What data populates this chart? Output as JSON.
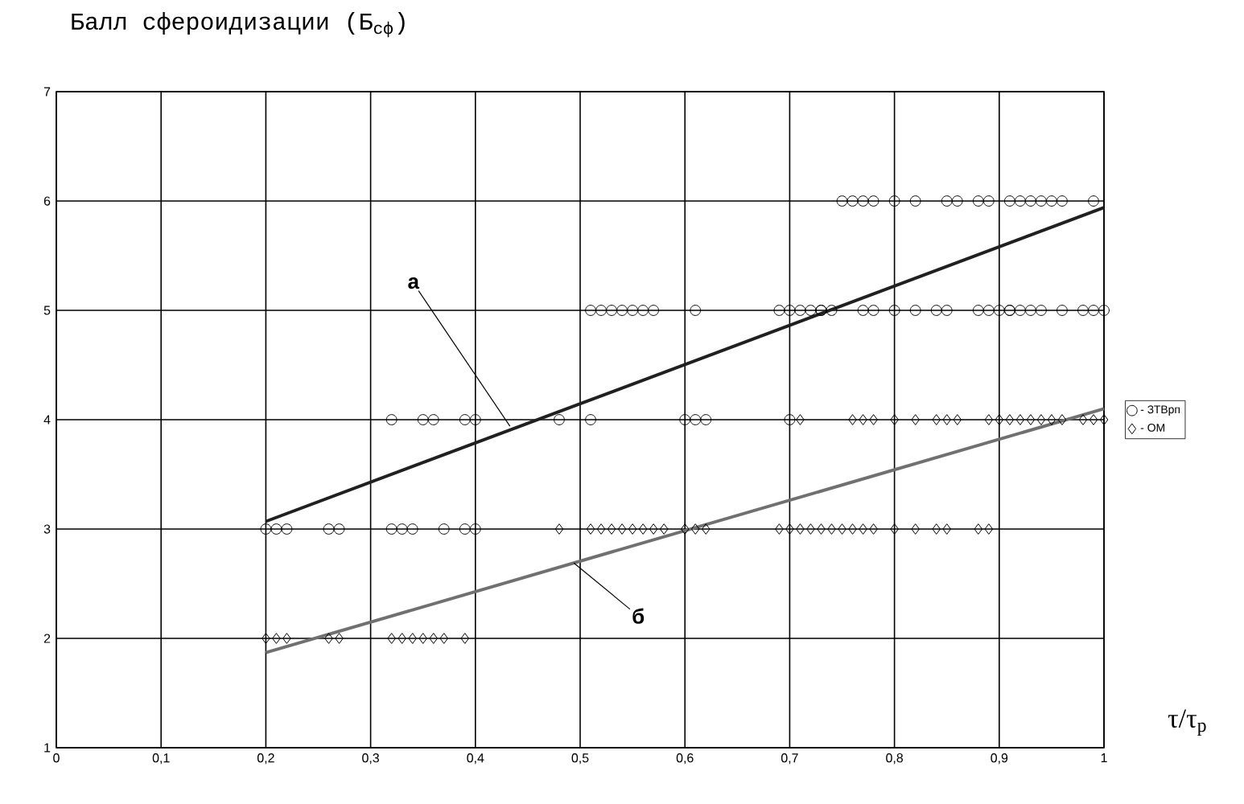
{
  "chart_data": {
    "type": "scatter",
    "title": "Балл сфероидизации (Б$_{сф}$)",
    "xlabel": "τ/τ$_{р}$",
    "xlim": [
      0,
      1
    ],
    "ylim": [
      1,
      7
    ],
    "xticks": [
      0,
      {
        "value": 0.1,
        "label": "0,1"
      },
      {
        "value": 0.2,
        "label": "0,2"
      },
      {
        "value": 0.3,
        "label": "0,3"
      },
      {
        "value": 0.4,
        "label": "0,4"
      },
      {
        "value": 0.5,
        "label": "0,5"
      },
      {
        "value": 0.6,
        "label": "0,6"
      },
      {
        "value": 0.7,
        "label": "0,7"
      },
      {
        "value": 0.8,
        "label": "0,8"
      },
      {
        "value": 0.9,
        "label": "0,9"
      },
      1
    ],
    "yticks": [
      1,
      2,
      3,
      4,
      5,
      6,
      7
    ],
    "grid": true,
    "legend": "right",
    "series": [
      {
        "name": "- ЗТВрп",
        "marker": "circle",
        "color": "#000000",
        "x": [
          0.75,
          0.76,
          0.77,
          0.78,
          0.8,
          0.82,
          0.85,
          0.86,
          0.88,
          0.89,
          0.91,
          0.92,
          0.93,
          0.94,
          0.95,
          0.96,
          0.99,
          0.51,
          0.52,
          0.53,
          0.54,
          0.55,
          0.56,
          0.57,
          0.61,
          0.69,
          0.7,
          0.71,
          0.72,
          0.73,
          0.73,
          0.74,
          0.77,
          0.78,
          0.8,
          0.82,
          0.84,
          0.85,
          0.88,
          0.89,
          0.9,
          0.91,
          0.91,
          0.92,
          0.93,
          0.94,
          0.96,
          0.98,
          0.99,
          1.0,
          0.32,
          0.35,
          0.36,
          0.39,
          0.4,
          0.48,
          0.51,
          0.6,
          0.61,
          0.62,
          0.7,
          0.2,
          0.21,
          0.22,
          0.26,
          0.27,
          0.32,
          0.33,
          0.34,
          0.37,
          0.39,
          0.4
        ],
        "values": [
          6,
          6,
          6,
          6,
          6,
          6,
          6,
          6,
          6,
          6,
          6,
          6,
          6,
          6,
          6,
          6,
          6,
          5,
          5,
          5,
          5,
          5,
          5,
          5,
          5,
          5,
          5,
          5,
          5,
          5,
          5,
          5,
          5,
          5,
          5,
          5,
          5,
          5,
          5,
          5,
          5,
          5,
          5,
          5,
          5,
          5,
          5,
          5,
          5,
          5,
          4,
          4,
          4,
          4,
          4,
          4,
          4,
          4,
          4,
          4,
          4,
          3,
          3,
          3,
          3,
          3,
          3,
          3,
          3,
          3,
          3,
          3
        ]
      },
      {
        "name": "- ОМ",
        "marker": "diamond",
        "color": "#000000",
        "x": [
          0.71,
          0.76,
          0.77,
          0.78,
          0.8,
          0.82,
          0.84,
          0.85,
          0.86,
          0.89,
          0.9,
          0.91,
          0.92,
          0.93,
          0.94,
          0.95,
          0.96,
          0.98,
          0.99,
          1.0,
          0.48,
          0.51,
          0.52,
          0.53,
          0.54,
          0.55,
          0.56,
          0.57,
          0.58,
          0.6,
          0.61,
          0.62,
          0.69,
          0.7,
          0.71,
          0.72,
          0.73,
          0.74,
          0.75,
          0.76,
          0.77,
          0.78,
          0.8,
          0.82,
          0.84,
          0.85,
          0.88,
          0.89,
          0.2,
          0.21,
          0.22,
          0.26,
          0.27,
          0.32,
          0.33,
          0.34,
          0.35,
          0.36,
          0.37,
          0.39
        ],
        "values": [
          4,
          4,
          4,
          4,
          4,
          4,
          4,
          4,
          4,
          4,
          4,
          4,
          4,
          4,
          4,
          4,
          4,
          4,
          4,
          4,
          3,
          3,
          3,
          3,
          3,
          3,
          3,
          3,
          3,
          3,
          3,
          3,
          3,
          3,
          3,
          3,
          3,
          3,
          3,
          3,
          3,
          3,
          3,
          3,
          3,
          3,
          3,
          3,
          2,
          2,
          2,
          2,
          2,
          2,
          2,
          2,
          2,
          2,
          2,
          2
        ]
      },
      {
        "type": "line",
        "color": "#202020",
        "x": [
          0.2,
          1.0
        ],
        "values": [
          3.07,
          5.94
        ]
      },
      {
        "type": "line",
        "color": "#707070",
        "x": [
          0.2,
          1.0
        ],
        "values": [
          1.87,
          4.1
        ]
      }
    ],
    "annotations": [
      {
        "text": "а",
        "x": 0.433,
        "y": 3.94
      },
      {
        "text": "б",
        "x": 0.494,
        "y": 2.69
      }
    ]
  }
}
